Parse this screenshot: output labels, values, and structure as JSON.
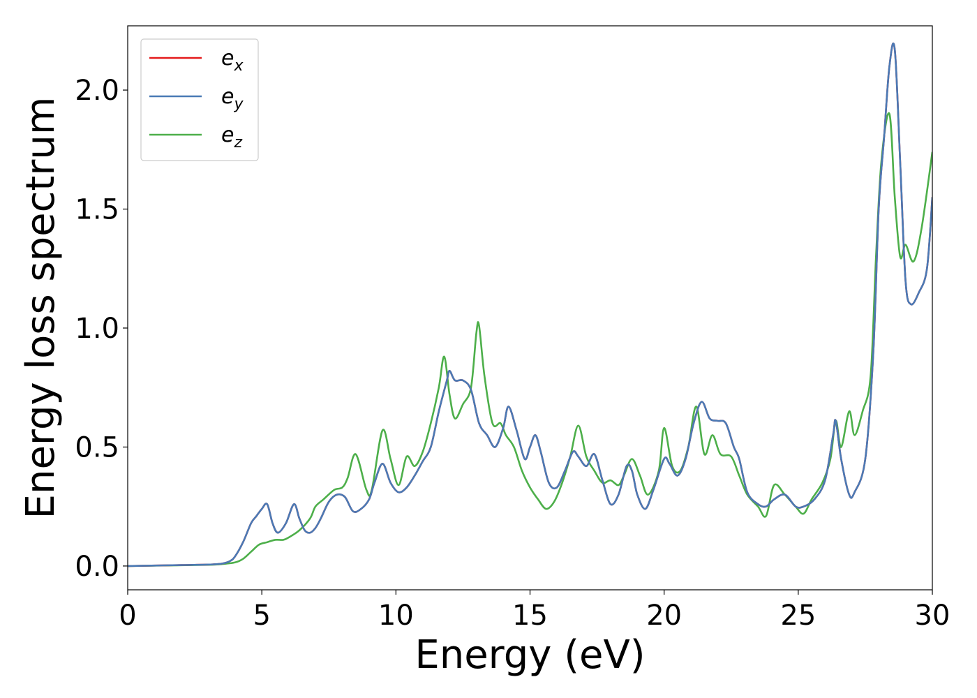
{
  "chart_data": {
    "type": "line",
    "xlabel": "Energy (eV)",
    "ylabel": "Energy loss spectrum",
    "xlim": [
      0,
      30
    ],
    "ylim": [
      -0.1,
      2.27
    ],
    "xticks": [
      0,
      5,
      10,
      15,
      20,
      25,
      30
    ],
    "xtick_labels": [
      "0",
      "5",
      "10",
      "15",
      "20",
      "25",
      "30"
    ],
    "yticks": [
      0.0,
      0.5,
      1.0,
      1.5,
      2.0
    ],
    "ytick_labels": [
      "0.0",
      "0.5",
      "1.0",
      "1.5",
      "2.0"
    ],
    "grid": false,
    "legend_position": "top-left",
    "series": [
      {
        "name": "e_x",
        "label_base": "e",
        "label_sub": "x",
        "color": "#e41a1c",
        "x": [
          0,
          2,
          3,
          3.5,
          3.8,
          4.0,
          4.3,
          4.6,
          4.8,
          5.0,
          5.2,
          5.4,
          5.6,
          5.9,
          6.2,
          6.4,
          6.6,
          6.8,
          7.0,
          7.2,
          7.5,
          7.8,
          8.1,
          8.4,
          8.7,
          9.0,
          9.2,
          9.5,
          9.8,
          10.1,
          10.4,
          10.7,
          11.0,
          11.3,
          11.6,
          11.9,
          12.0,
          12.2,
          12.5,
          12.8,
          13.1,
          13.4,
          13.7,
          14.0,
          14.2,
          14.5,
          14.8,
          15.0,
          15.2,
          15.4,
          15.7,
          16.0,
          16.3,
          16.6,
          16.8,
          17.1,
          17.4,
          17.7,
          18.0,
          18.3,
          18.6,
          18.8,
          19.0,
          19.3,
          19.6,
          20.0,
          20.2,
          20.5,
          20.8,
          21.1,
          21.4,
          21.7,
          22.0,
          22.3,
          22.6,
          22.8,
          23.1,
          23.5,
          23.8,
          24.1,
          24.5,
          24.9,
          25.2,
          25.6,
          26.0,
          26.3,
          26.4,
          26.6,
          26.9,
          27.1,
          27.5,
          27.8,
          28.0,
          28.2,
          28.4,
          28.6,
          28.8,
          29.0,
          29.2,
          29.5,
          29.8,
          30.0
        ],
        "values": [
          0,
          0.004,
          0.006,
          0.01,
          0.02,
          0.04,
          0.1,
          0.18,
          0.21,
          0.24,
          0.26,
          0.18,
          0.14,
          0.18,
          0.26,
          0.2,
          0.15,
          0.14,
          0.16,
          0.2,
          0.27,
          0.3,
          0.29,
          0.23,
          0.24,
          0.28,
          0.35,
          0.43,
          0.35,
          0.31,
          0.33,
          0.38,
          0.44,
          0.5,
          0.65,
          0.78,
          0.82,
          0.78,
          0.78,
          0.74,
          0.6,
          0.55,
          0.5,
          0.58,
          0.67,
          0.57,
          0.45,
          0.5,
          0.55,
          0.48,
          0.35,
          0.33,
          0.4,
          0.48,
          0.46,
          0.42,
          0.47,
          0.36,
          0.26,
          0.3,
          0.42,
          0.4,
          0.3,
          0.24,
          0.32,
          0.45,
          0.43,
          0.38,
          0.45,
          0.6,
          0.69,
          0.62,
          0.61,
          0.6,
          0.5,
          0.45,
          0.31,
          0.26,
          0.25,
          0.28,
          0.3,
          0.25,
          0.25,
          0.28,
          0.36,
          0.55,
          0.61,
          0.45,
          0.3,
          0.31,
          0.45,
          0.9,
          1.5,
          1.8,
          2.1,
          2.17,
          1.7,
          1.2,
          1.1,
          1.15,
          1.25,
          1.55
        ]
      },
      {
        "name": "e_y",
        "label_base": "e",
        "label_sub": "y",
        "color": "#4a7ab5",
        "x": [
          0,
          2,
          3,
          3.5,
          3.8,
          4.0,
          4.3,
          4.6,
          4.8,
          5.0,
          5.2,
          5.4,
          5.6,
          5.9,
          6.2,
          6.4,
          6.6,
          6.8,
          7.0,
          7.2,
          7.5,
          7.8,
          8.1,
          8.4,
          8.7,
          9.0,
          9.2,
          9.5,
          9.8,
          10.1,
          10.4,
          10.7,
          11.0,
          11.3,
          11.6,
          11.9,
          12.0,
          12.2,
          12.5,
          12.8,
          13.1,
          13.4,
          13.7,
          14.0,
          14.2,
          14.5,
          14.8,
          15.0,
          15.2,
          15.4,
          15.7,
          16.0,
          16.3,
          16.6,
          16.8,
          17.1,
          17.4,
          17.7,
          18.0,
          18.3,
          18.6,
          18.8,
          19.0,
          19.3,
          19.6,
          20.0,
          20.2,
          20.5,
          20.8,
          21.1,
          21.4,
          21.7,
          22.0,
          22.3,
          22.6,
          22.8,
          23.1,
          23.5,
          23.8,
          24.1,
          24.5,
          24.9,
          25.2,
          25.6,
          26.0,
          26.3,
          26.4,
          26.6,
          26.9,
          27.1,
          27.5,
          27.8,
          28.0,
          28.2,
          28.4,
          28.6,
          28.8,
          29.0,
          29.2,
          29.5,
          29.8,
          30.0
        ],
        "values": [
          0,
          0.004,
          0.006,
          0.01,
          0.02,
          0.04,
          0.1,
          0.18,
          0.21,
          0.24,
          0.26,
          0.18,
          0.14,
          0.18,
          0.26,
          0.2,
          0.15,
          0.14,
          0.16,
          0.2,
          0.27,
          0.3,
          0.29,
          0.23,
          0.24,
          0.28,
          0.35,
          0.43,
          0.35,
          0.31,
          0.33,
          0.38,
          0.44,
          0.5,
          0.65,
          0.78,
          0.82,
          0.78,
          0.78,
          0.74,
          0.6,
          0.55,
          0.5,
          0.58,
          0.67,
          0.57,
          0.45,
          0.5,
          0.55,
          0.48,
          0.35,
          0.33,
          0.4,
          0.48,
          0.46,
          0.42,
          0.47,
          0.36,
          0.26,
          0.3,
          0.42,
          0.4,
          0.3,
          0.24,
          0.32,
          0.45,
          0.43,
          0.38,
          0.45,
          0.6,
          0.69,
          0.62,
          0.61,
          0.6,
          0.5,
          0.45,
          0.31,
          0.26,
          0.25,
          0.28,
          0.3,
          0.25,
          0.25,
          0.28,
          0.36,
          0.55,
          0.61,
          0.45,
          0.3,
          0.31,
          0.45,
          0.9,
          1.5,
          1.8,
          2.1,
          2.17,
          1.7,
          1.2,
          1.1,
          1.15,
          1.25,
          1.55
        ]
      },
      {
        "name": "e_z",
        "label_base": "e",
        "label_sub": "z",
        "color": "#4daf4a",
        "x": [
          0,
          2,
          3,
          3.5,
          4.0,
          4.3,
          4.6,
          4.9,
          5.2,
          5.5,
          5.8,
          6.0,
          6.4,
          6.8,
          7.0,
          7.3,
          7.7,
          8.0,
          8.2,
          8.5,
          8.9,
          9.1,
          9.5,
          9.8,
          10.1,
          10.4,
          10.7,
          11.0,
          11.3,
          11.6,
          11.8,
          12.0,
          12.2,
          12.5,
          12.8,
          13.0,
          13.1,
          13.3,
          13.6,
          13.9,
          14.1,
          14.4,
          14.7,
          15.0,
          15.3,
          15.6,
          15.9,
          16.2,
          16.5,
          16.8,
          17.1,
          17.4,
          17.7,
          18.0,
          18.3,
          18.5,
          18.8,
          19.1,
          19.4,
          19.8,
          20.0,
          20.3,
          20.6,
          20.9,
          21.2,
          21.5,
          21.8,
          22.1,
          22.5,
          22.8,
          23.1,
          23.5,
          23.8,
          24.1,
          24.5,
          24.9,
          25.2,
          25.5,
          25.9,
          26.2,
          26.4,
          26.6,
          26.9,
          27.1,
          27.4,
          27.7,
          27.9,
          28.1,
          28.4,
          28.6,
          28.8,
          29.0,
          29.3,
          29.6,
          30.0
        ],
        "values": [
          0,
          0.003,
          0.005,
          0.008,
          0.015,
          0.03,
          0.06,
          0.09,
          0.1,
          0.11,
          0.11,
          0.12,
          0.15,
          0.2,
          0.25,
          0.28,
          0.32,
          0.33,
          0.37,
          0.47,
          0.32,
          0.32,
          0.57,
          0.45,
          0.34,
          0.46,
          0.42,
          0.48,
          0.6,
          0.75,
          0.88,
          0.72,
          0.62,
          0.68,
          0.75,
          0.98,
          1.01,
          0.8,
          0.6,
          0.6,
          0.55,
          0.5,
          0.4,
          0.33,
          0.28,
          0.24,
          0.27,
          0.35,
          0.46,
          0.59,
          0.46,
          0.4,
          0.35,
          0.36,
          0.34,
          0.38,
          0.45,
          0.38,
          0.3,
          0.4,
          0.58,
          0.42,
          0.4,
          0.5,
          0.67,
          0.47,
          0.55,
          0.47,
          0.46,
          0.38,
          0.3,
          0.25,
          0.21,
          0.34,
          0.3,
          0.25,
          0.22,
          0.28,
          0.35,
          0.45,
          0.61,
          0.5,
          0.65,
          0.55,
          0.65,
          0.8,
          1.3,
          1.7,
          1.9,
          1.55,
          1.3,
          1.35,
          1.28,
          1.42,
          1.74
        ]
      }
    ]
  }
}
